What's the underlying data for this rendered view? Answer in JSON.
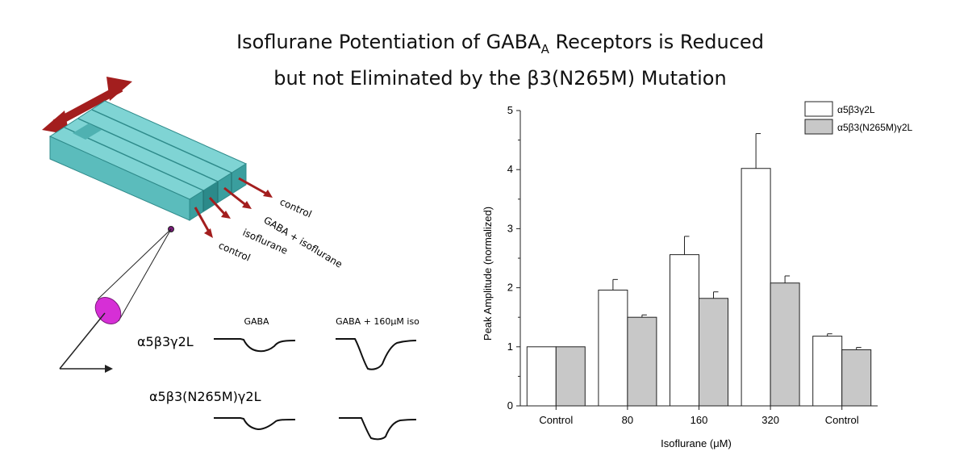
{
  "title": {
    "line1_prefix": "Isoflurane Potentiation of GABA",
    "line1_sub": "A",
    "line1_suffix": " Receptors is Reduced",
    "line2": "but not Eliminated by the β3(N265M) Mutation"
  },
  "diagram": {
    "channel_labels": [
      "control",
      "GABA + isoflurane",
      "isoflurane",
      "control"
    ],
    "trace_headers": [
      "GABA",
      "GABA + 160μM iso"
    ],
    "rows": [
      "α5β3γ2L",
      "α5β3(N265M)γ2L"
    ],
    "colors": {
      "glass": "#6cc9c9",
      "glass_dark": "#3a9e9e",
      "arrow": "#a31e1e",
      "pipette": "#d62fd6"
    }
  },
  "chart_data": {
    "type": "bar",
    "title": "",
    "xlabel": "Isoflurane (μM)",
    "ylabel": "Peak Amplitude (normalized)",
    "ylim": [
      0,
      5
    ],
    "yticks": [
      0,
      1,
      2,
      3,
      4,
      5
    ],
    "categories": [
      "Control",
      "80",
      "160",
      "320",
      "Control"
    ],
    "legend_position": "top-right",
    "series": [
      {
        "name": "α5β3γ2L",
        "color": "#ffffff",
        "values": [
          1.0,
          1.96,
          2.56,
          4.02,
          1.18
        ],
        "errors": [
          0,
          0.18,
          0.31,
          0.59,
          0.04
        ]
      },
      {
        "name": "α5β3(N265M)γ2L",
        "color": "#c8c8c8",
        "values": [
          1.0,
          1.5,
          1.82,
          2.08,
          0.95
        ],
        "errors": [
          0,
          0.04,
          0.11,
          0.12,
          0.04
        ]
      }
    ]
  }
}
